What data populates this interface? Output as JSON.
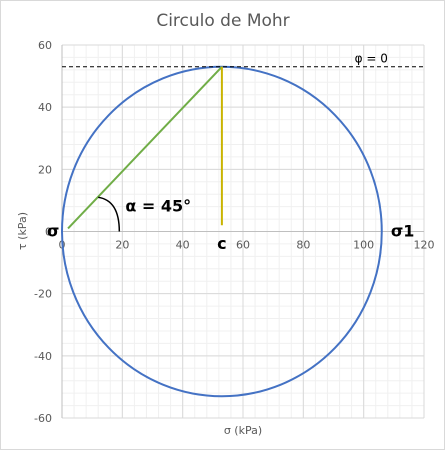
{
  "chart_data": {
    "type": "scatter",
    "title": "Circulo de Mohr",
    "xlabel": "σ (kPa)",
    "ylabel": "τ (kPa)",
    "xlim": [
      0,
      120
    ],
    "ylim": [
      -60,
      60
    ],
    "x_ticks": [
      0,
      20,
      40,
      60,
      80,
      100,
      120
    ],
    "y_ticks": [
      -60,
      -40,
      -20,
      0,
      20,
      40,
      60
    ],
    "grid": true,
    "circle": {
      "center": [
        53,
        0
      ],
      "radius": 53,
      "color": "#4472c4"
    },
    "series": [
      {
        "x": [
          2,
          53
        ],
        "y": [
          1,
          53
        ],
        "color": "#70ad47"
      },
      {
        "x": [
          53,
          53
        ],
        "y": [
          2,
          53
        ],
        "color": "#c9b400"
      }
    ],
    "envelope": {
      "y": 53,
      "style": "dashed",
      "color": "#000000"
    },
    "annotations": [
      {
        "text": "φ = 0",
        "x": 97,
        "y": 56
      },
      {
        "text": "α = 45°",
        "x": 21,
        "y": 8
      },
      {
        "text": "c",
        "x": 53,
        "y": -4
      },
      {
        "text": "σ",
        "x": -5,
        "y": 0
      },
      {
        "text": "σ1",
        "x": 109,
        "y": 0
      }
    ]
  }
}
